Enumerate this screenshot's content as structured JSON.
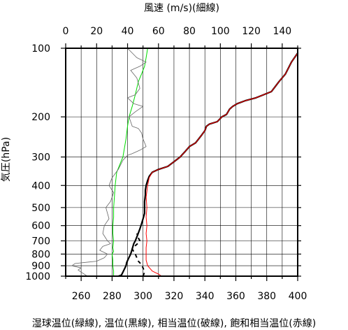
{
  "chart_data": {
    "type": "line",
    "title": "",
    "xlabel_bottom": "湿球温位(緑線), 温位(黒線), 相当温位(破線), 飽和相当温位(赤線)",
    "xlabel_top": "風速 (m/s)(細線)",
    "ylabel": "気圧(hPa)",
    "y_scale": "log",
    "ylim": [
      1000,
      100
    ],
    "xlim_bottom": [
      250,
      400
    ],
    "xlim_top": [
      0,
      150
    ],
    "grid": true,
    "y_ticks": [
      1000,
      900,
      800,
      700,
      600,
      500,
      400,
      300,
      200,
      100
    ],
    "x_ticks_bottom": [
      260,
      280,
      300,
      320,
      340,
      360,
      380,
      400
    ],
    "x_ticks_top": [
      0,
      20,
      40,
      60,
      80,
      100,
      120,
      140
    ],
    "series": [
      {
        "key": "wet_bulb",
        "axis": "bottom",
        "color": "#00dd00",
        "width": 1,
        "dash": "",
        "points": [
          [
            281,
            1000
          ],
          [
            281,
            950
          ],
          [
            280.5,
            900
          ],
          [
            280.5,
            850
          ],
          [
            280,
            800
          ],
          [
            281,
            780
          ],
          [
            280.5,
            750
          ],
          [
            281,
            700
          ],
          [
            280.5,
            650
          ],
          [
            280.5,
            600
          ],
          [
            281,
            550
          ],
          [
            281,
            500
          ],
          [
            281.5,
            450
          ],
          [
            282,
            400
          ],
          [
            283,
            350
          ],
          [
            287,
            300
          ],
          [
            289,
            250
          ],
          [
            290,
            220
          ],
          [
            291,
            200
          ],
          [
            293,
            180
          ],
          [
            295,
            160
          ],
          [
            297,
            140
          ],
          [
            299,
            130
          ],
          [
            301,
            120
          ],
          [
            302,
            110
          ],
          [
            303,
            100
          ]
        ]
      },
      {
        "key": "theta",
        "axis": "bottom",
        "color": "#000000",
        "width": 2.2,
        "dash": "",
        "points": [
          [
            284,
            1000
          ],
          [
            286,
            990
          ],
          [
            287,
            960
          ],
          [
            288,
            930
          ],
          [
            289,
            900
          ],
          [
            289.5,
            870
          ],
          [
            290.5,
            840
          ],
          [
            292,
            800
          ],
          [
            293,
            760
          ],
          [
            294,
            720
          ],
          [
            295,
            700
          ],
          [
            296.5,
            660
          ],
          [
            298,
            620
          ],
          [
            299,
            590
          ],
          [
            300,
            560
          ],
          [
            301,
            530
          ],
          [
            301,
            500
          ],
          [
            301,
            470
          ],
          [
            301.5,
            440
          ],
          [
            301.5,
            420
          ],
          [
            302,
            400
          ],
          [
            303,
            380
          ],
          [
            304,
            365
          ],
          [
            306,
            350
          ],
          [
            310,
            340
          ],
          [
            316,
            330
          ],
          [
            320,
            315
          ],
          [
            324,
            300
          ],
          [
            327,
            285
          ],
          [
            330,
            270
          ],
          [
            334,
            260
          ],
          [
            336,
            250
          ],
          [
            338,
            240
          ],
          [
            340,
            230
          ],
          [
            341,
            220
          ],
          [
            343,
            215
          ],
          [
            348,
            210
          ],
          [
            351,
            200
          ],
          [
            354,
            195
          ],
          [
            356,
            185
          ],
          [
            358,
            180
          ],
          [
            361,
            175
          ],
          [
            366,
            170
          ],
          [
            373,
            165
          ],
          [
            378,
            160
          ],
          [
            383,
            155
          ],
          [
            388,
            140
          ],
          [
            392,
            130
          ],
          [
            396,
            115
          ],
          [
            400,
            105
          ]
        ]
      },
      {
        "key": "theta_e",
        "axis": "bottom",
        "color": "#000000",
        "width": 2,
        "dash": "5,5",
        "points": [
          [
            300,
            1000
          ],
          [
            301,
            960
          ],
          [
            300,
            920
          ],
          [
            299,
            890
          ],
          [
            297,
            860
          ],
          [
            296,
            830
          ],
          [
            295,
            800
          ],
          [
            294,
            780
          ],
          [
            293,
            760
          ],
          [
            295,
            735
          ],
          [
            297,
            715
          ],
          [
            298,
            700
          ],
          [
            297,
            680
          ],
          [
            296,
            650
          ]
        ]
      },
      {
        "key": "theta_es",
        "axis": "bottom",
        "color": "#ff0000",
        "width": 1,
        "dash": "",
        "points": [
          [
            312,
            1000
          ],
          [
            310,
            980
          ],
          [
            306,
            950
          ],
          [
            303,
            900
          ],
          [
            302,
            850
          ],
          [
            302,
            800
          ],
          [
            302,
            750
          ],
          [
            302.5,
            700
          ],
          [
            302,
            650
          ],
          [
            302.5,
            600
          ],
          [
            302,
            550
          ],
          [
            302.5,
            500
          ],
          [
            302,
            450
          ],
          [
            303,
            400
          ],
          [
            304,
            370
          ],
          [
            306,
            350
          ],
          [
            310,
            340
          ],
          [
            316,
            330
          ],
          [
            320,
            315
          ],
          [
            324,
            300
          ],
          [
            327,
            285
          ],
          [
            330,
            270
          ],
          [
            334,
            260
          ],
          [
            336,
            250
          ],
          [
            338,
            240
          ],
          [
            340,
            230
          ],
          [
            341,
            220
          ],
          [
            343,
            215
          ],
          [
            348,
            210
          ],
          [
            351,
            200
          ],
          [
            354,
            195
          ],
          [
            356,
            185
          ],
          [
            358,
            180
          ],
          [
            361,
            175
          ],
          [
            366,
            170
          ],
          [
            373,
            165
          ],
          [
            378,
            160
          ],
          [
            383,
            155
          ],
          [
            388,
            140
          ],
          [
            392,
            130
          ],
          [
            396,
            115
          ],
          [
            400,
            105
          ]
        ]
      },
      {
        "key": "wind_speed",
        "axis": "top",
        "color": "#666666",
        "width": 0.8,
        "dash": "",
        "points": [
          [
            14,
            1000
          ],
          [
            10,
            960
          ],
          [
            8,
            940
          ],
          [
            10,
            920
          ],
          [
            4,
            900
          ],
          [
            6,
            880
          ],
          [
            20,
            860
          ],
          [
            25,
            830
          ],
          [
            27,
            800
          ],
          [
            22,
            770
          ],
          [
            24,
            740
          ],
          [
            29,
            720
          ],
          [
            27,
            700
          ],
          [
            24,
            650
          ],
          [
            25,
            600
          ],
          [
            28,
            560
          ],
          [
            27,
            530
          ],
          [
            26,
            500
          ],
          [
            29,
            470
          ],
          [
            31,
            430
          ],
          [
            28,
            400
          ],
          [
            30,
            370
          ],
          [
            34,
            340
          ],
          [
            37,
            310
          ],
          [
            40,
            295
          ],
          [
            43,
            290
          ],
          [
            48,
            280
          ],
          [
            52,
            270
          ],
          [
            50,
            250
          ],
          [
            49,
            235
          ],
          [
            47,
            225
          ],
          [
            43,
            220
          ],
          [
            41,
            200
          ],
          [
            45,
            190
          ],
          [
            50,
            180
          ],
          [
            44,
            175
          ],
          [
            40,
            165
          ],
          [
            45,
            160
          ],
          [
            48,
            150
          ],
          [
            46,
            135
          ],
          [
            42,
            125
          ],
          [
            48,
            120
          ],
          [
            52,
            115
          ],
          [
            46,
            110
          ],
          [
            40,
            100
          ]
        ]
      }
    ]
  }
}
